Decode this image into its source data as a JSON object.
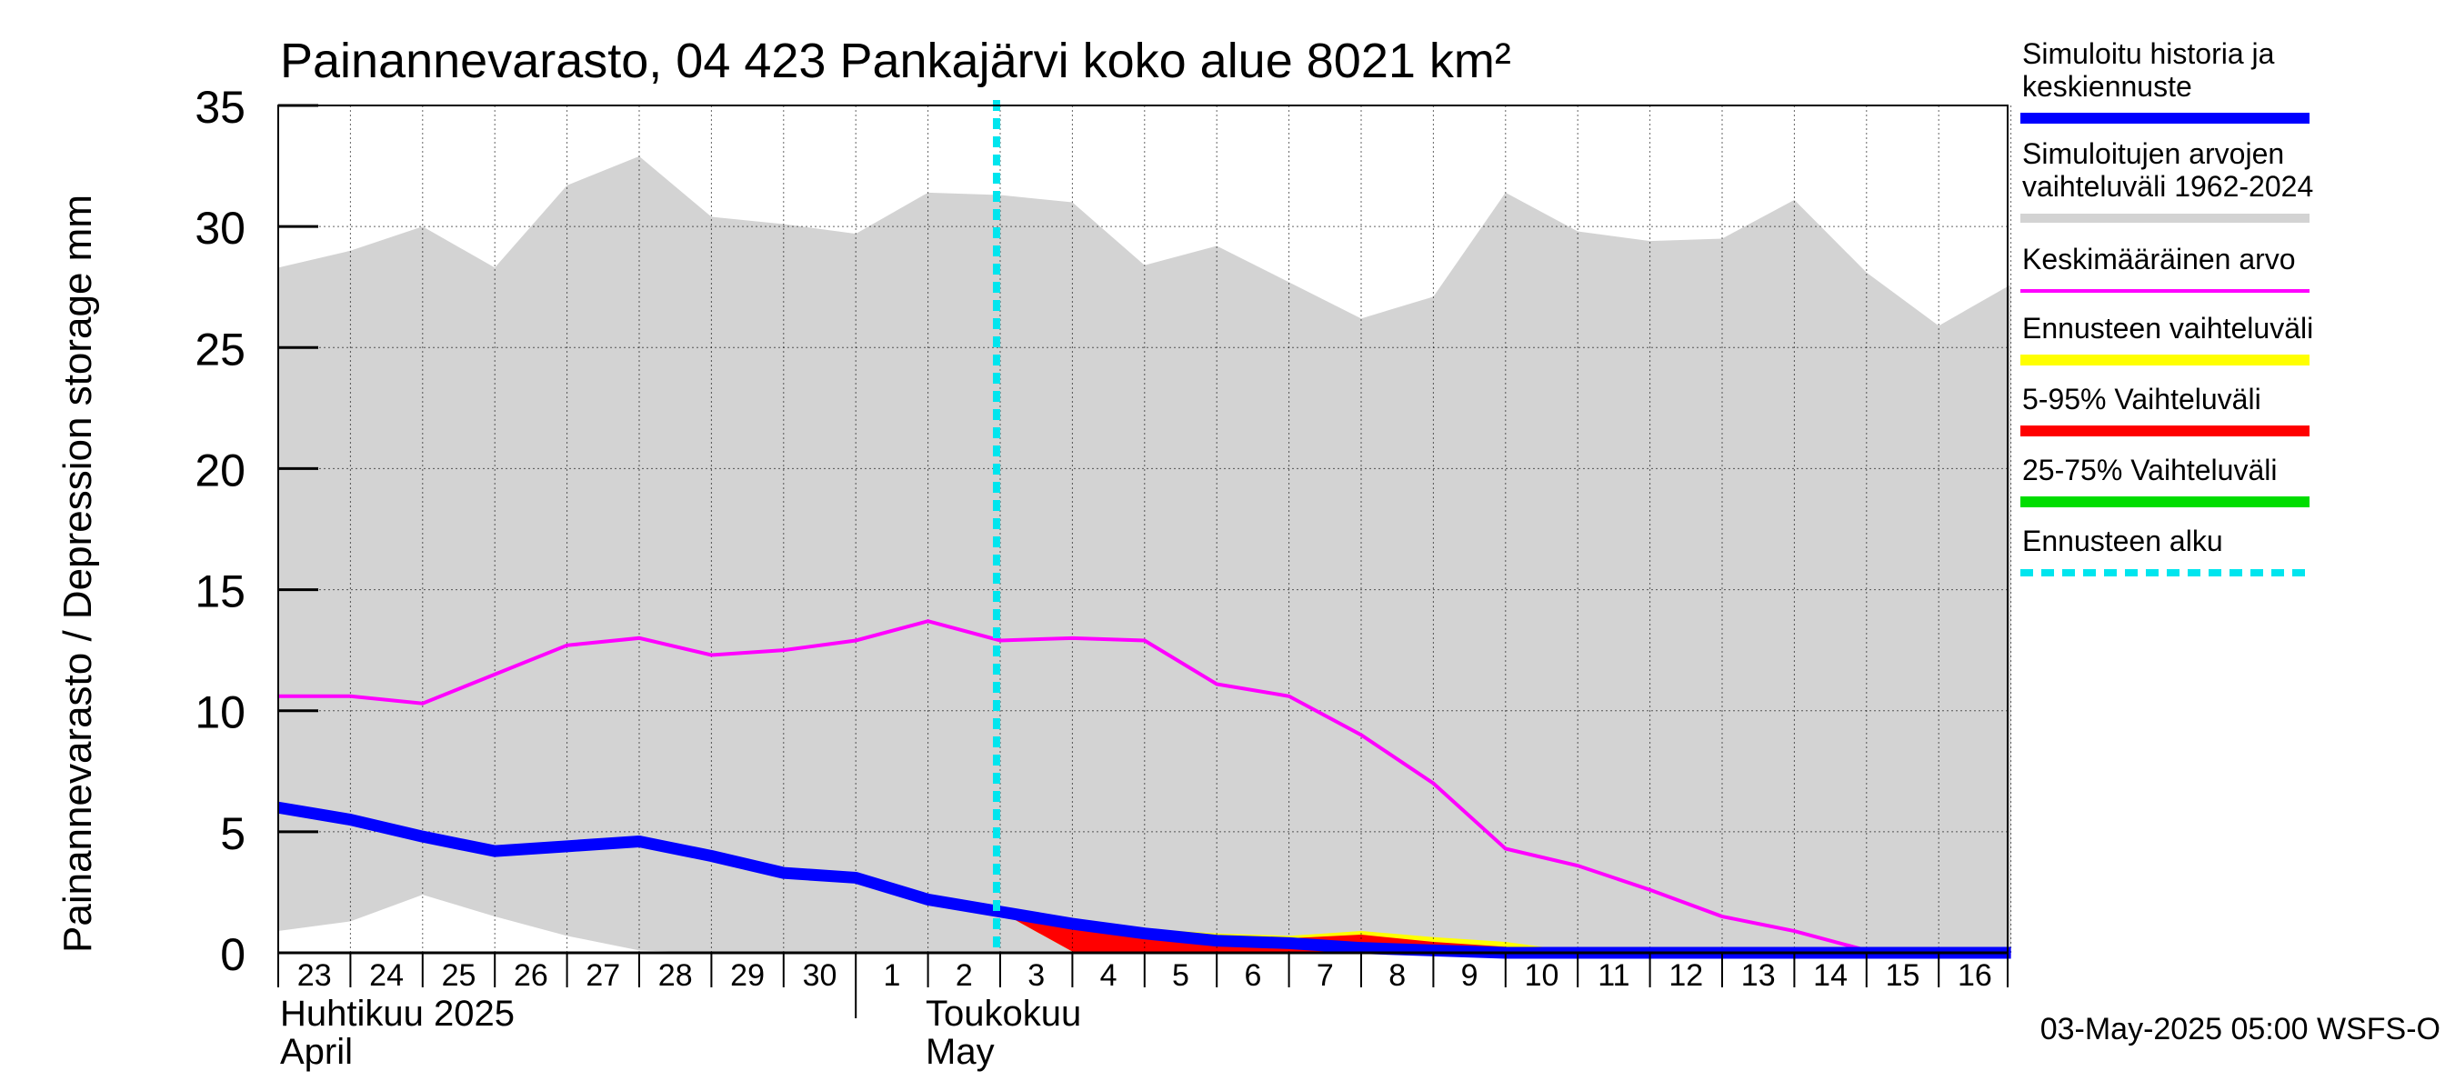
{
  "chart_data": {
    "type": "area",
    "title": "Painannevarasto, 04 423 Pankajärvi koko alue 8021 km²",
    "ylabel": "Painannevarasto / Depression storage    mm",
    "ylim": [
      0,
      35
    ],
    "yticks": [
      0,
      5,
      10,
      15,
      20,
      25,
      30,
      35
    ],
    "grid": true,
    "legend_position": "right",
    "x_day_labels": [
      "23",
      "24",
      "25",
      "26",
      "27",
      "28",
      "29",
      "30",
      "1",
      "2",
      "3",
      "4",
      "5",
      "6",
      "7",
      "8",
      "9",
      "10",
      "11",
      "12",
      "13",
      "14",
      "15",
      "16"
    ],
    "month_labels": [
      {
        "fi": "Huhtikuu  2025",
        "en": "April"
      },
      {
        "fi": "Toukokuu",
        "en": "May"
      }
    ],
    "forecast_start": "3",
    "footer": "03-May-2025 05:00 WSFS-O",
    "colors": {
      "history": "#0000ff",
      "range": "#d3d3d3",
      "mean": "#ff00ff",
      "forecast_range": "#ffff00",
      "p5_95": "#ff0000",
      "p25_75": "#00dd00",
      "forecast_start": "#00e5ee"
    },
    "legend": [
      {
        "key": "history",
        "label": [
          "Simuloitu historia ja",
          "keskiennuste"
        ],
        "style": "thick"
      },
      {
        "key": "range",
        "label": [
          "Simuloitujen arvojen",
          "vaihteluväli 1962-2024"
        ],
        "style": "medium"
      },
      {
        "key": "mean",
        "label": [
          "Keskimääräinen arvo"
        ],
        "style": "thin"
      },
      {
        "key": "forecast_range",
        "label": [
          "Ennusteen vaihteluväli"
        ],
        "style": "thick"
      },
      {
        "key": "p5_95",
        "label": [
          "5-95% Vaihteluväli"
        ],
        "style": "thick"
      },
      {
        "key": "p25_75",
        "label": [
          "25-75% Vaihteluväli"
        ],
        "style": "thick"
      },
      {
        "key": "forecast_start",
        "label": [
          "Ennusteen alku"
        ],
        "style": "dashed"
      }
    ],
    "range_max": [
      28.3,
      29.0,
      30.0,
      28.3,
      31.7,
      32.9,
      30.4,
      30.1,
      29.7,
      31.4,
      31.3,
      31.0,
      28.4,
      29.2,
      27.7,
      26.2,
      27.1,
      31.4,
      29.8,
      29.4,
      29.5,
      31.1,
      28.1,
      25.9,
      27.6
    ],
    "range_min": [
      0.9,
      1.3,
      2.4,
      1.5,
      0.7,
      0.1,
      0,
      0,
      0,
      0,
      0,
      0,
      0,
      0,
      0,
      0,
      0,
      0,
      0,
      0,
      0,
      0,
      0,
      0,
      0
    ],
    "mean": [
      10.6,
      10.6,
      10.3,
      11.5,
      12.7,
      13.0,
      12.3,
      12.5,
      12.9,
      13.7,
      12.9,
      13.0,
      12.9,
      11.1,
      10.6,
      9.0,
      7.0,
      4.3,
      3.6,
      2.6,
      1.5,
      0.9,
      0.1,
      -0.1,
      -0.1
    ],
    "history": [
      6.0,
      5.5,
      4.8,
      4.2,
      4.4,
      4.6,
      4.0,
      3.3,
      3.1,
      2.2,
      1.7
    ],
    "forecast_median": [
      1.7,
      1.2,
      0.8,
      0.5,
      0.4,
      0.2,
      0.1,
      0,
      0,
      0,
      0,
      0,
      0,
      0,
      0
    ],
    "forecast_max": [
      1.7,
      1.35,
      1.0,
      0.8,
      0.7,
      0.9,
      0.65,
      0.45,
      0.05,
      0,
      0,
      0,
      0,
      0,
      0
    ],
    "p95": [
      1.7,
      1.3,
      0.95,
      0.7,
      0.6,
      0.75,
      0.45,
      0.25,
      0,
      0,
      0,
      0,
      0,
      0,
      0
    ],
    "p5": [
      1.7,
      0.05,
      0.05,
      0,
      0,
      0,
      0,
      0,
      0,
      0,
      0,
      0,
      0,
      0,
      0
    ]
  }
}
